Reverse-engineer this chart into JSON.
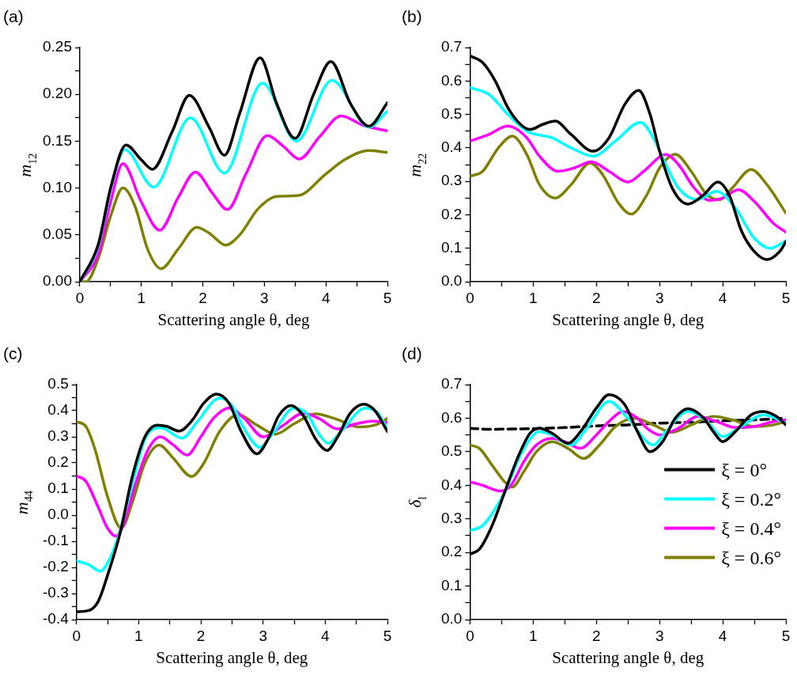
{
  "chart_data": [
    {
      "type": "line",
      "title": "(a)",
      "xlabel": "Scattering angle θ, deg",
      "ylabel": "m$_{12}$",
      "xlim": [
        0,
        5
      ],
      "ylim": [
        0,
        0.25
      ],
      "grid": false,
      "legend": false,
      "xticks": [
        0,
        {
          "value": 0.5,
          "label": null
        },
        1,
        {
          "value": 1.5,
          "label": null
        },
        2,
        {
          "value": 2.5,
          "label": null
        },
        3,
        {
          "value": 3.5,
          "label": null
        },
        4,
        {
          "value": 4.5,
          "label": null
        },
        5
      ],
      "yticks": [
        {
          "value": 0,
          "label": "0.00"
        },
        {
          "value": 0.025,
          "label": null
        },
        {
          "value": 0.05,
          "label": "0.05"
        },
        {
          "value": 0.075,
          "label": null
        },
        {
          "value": 0.1,
          "label": "0.10"
        },
        {
          "value": 0.125,
          "label": null
        },
        {
          "value": 0.15,
          "label": "0.15"
        },
        {
          "value": 0.175,
          "label": null
        },
        {
          "value": 0.2,
          "label": "0.20"
        },
        {
          "value": 0.225,
          "label": null
        },
        {
          "value": 0.25,
          "label": "0.25"
        }
      ],
      "series": [
        {
          "color": "#000000",
          "x": [
            0,
            0.3,
            0.5,
            0.75,
            1.0,
            1.18,
            1.5,
            1.78,
            2.1,
            2.35,
            2.6,
            2.93,
            3.2,
            3.5,
            3.8,
            4.08,
            4.4,
            4.7,
            5
          ],
          "values": [
            0,
            0.04,
            0.1,
            0.146,
            0.13,
            0.12,
            0.16,
            0.199,
            0.165,
            0.135,
            0.18,
            0.239,
            0.19,
            0.153,
            0.2,
            0.235,
            0.19,
            0.166,
            0.191
          ]
        },
        {
          "color": "#00ffff",
          "x": [
            0,
            0.3,
            0.5,
            0.73,
            1.2,
            1.8,
            2.35,
            2.97,
            3.52,
            4.1,
            4.7,
            5
          ],
          "values": [
            0,
            0.038,
            0.098,
            0.141,
            0.101,
            0.175,
            0.116,
            0.212,
            0.15,
            0.215,
            0.165,
            0.182
          ]
        },
        {
          "color": "#ff00ff",
          "x": [
            0,
            0.3,
            0.5,
            0.7,
            1.0,
            1.3,
            1.6,
            1.88,
            2.15,
            2.4,
            2.7,
            3.05,
            3.3,
            3.57,
            3.9,
            4.25,
            4.6,
            5
          ],
          "values": [
            0,
            0.03,
            0.085,
            0.126,
            0.085,
            0.055,
            0.09,
            0.117,
            0.095,
            0.077,
            0.115,
            0.156,
            0.145,
            0.131,
            0.155,
            0.177,
            0.167,
            0.161
          ]
        },
        {
          "color": "#808000",
          "x": [
            0,
            0.1,
            0.3,
            0.5,
            0.7,
            0.9,
            1.1,
            1.32,
            1.6,
            1.9,
            2.1,
            2.37,
            2.6,
            2.9,
            3.2,
            3.55,
            4.0,
            4.3,
            4.7,
            5
          ],
          "values": [
            0,
            0,
            0.025,
            0.07,
            0.1,
            0.08,
            0.035,
            0.014,
            0.035,
            0.058,
            0.052,
            0.039,
            0.05,
            0.078,
            0.091,
            0.092,
            0.115,
            0.13,
            0.14,
            0.138
          ]
        }
      ]
    },
    {
      "type": "line",
      "title": "(b)",
      "xlabel": "Scattering angle θ, deg",
      "ylabel": "m$_{22}$",
      "xlim": [
        0,
        5
      ],
      "ylim": [
        0,
        0.7
      ],
      "grid": false,
      "legend": false,
      "xticks": [
        0,
        {
          "value": 0.5,
          "label": null
        },
        1,
        {
          "value": 1.5,
          "label": null
        },
        2,
        {
          "value": 2.5,
          "label": null
        },
        3,
        {
          "value": 3.5,
          "label": null
        },
        4,
        {
          "value": 4.5,
          "label": null
        },
        5
      ],
      "yticks": [
        {
          "value": 0,
          "label": "0.0"
        },
        {
          "value": 0.05,
          "label": null
        },
        0.1,
        {
          "value": 0.15,
          "label": null
        },
        0.2,
        {
          "value": 0.25,
          "label": null
        },
        0.3,
        {
          "value": 0.35,
          "label": null
        },
        0.4,
        {
          "value": 0.45,
          "label": null
        },
        0.5,
        {
          "value": 0.55,
          "label": null
        },
        0.6,
        {
          "value": 0.65,
          "label": null
        },
        0.7
      ],
      "series": [
        {
          "color": "#000000",
          "x": [
            0,
            0.2,
            0.4,
            0.6,
            0.8,
            0.95,
            1.15,
            1.35,
            1.6,
            1.95,
            2.2,
            2.45,
            2.67,
            2.85,
            3.0,
            3.2,
            3.45,
            3.7,
            3.92,
            4.1,
            4.3,
            4.5,
            4.7,
            4.9,
            5
          ],
          "values": [
            0.675,
            0.655,
            0.6,
            0.52,
            0.47,
            0.455,
            0.47,
            0.48,
            0.44,
            0.39,
            0.43,
            0.53,
            0.572,
            0.5,
            0.39,
            0.28,
            0.232,
            0.26,
            0.298,
            0.26,
            0.15,
            0.09,
            0.066,
            0.09,
            0.12
          ]
        },
        {
          "color": "#00ffff",
          "x": [
            0,
            0.3,
            0.6,
            0.9,
            1.3,
            1.6,
            1.95,
            2.3,
            2.7,
            2.9,
            3.1,
            3.3,
            3.6,
            3.9,
            4.2,
            4.5,
            4.75,
            5
          ],
          "values": [
            0.58,
            0.56,
            0.5,
            0.45,
            0.43,
            0.4,
            0.375,
            0.42,
            0.476,
            0.43,
            0.35,
            0.28,
            0.245,
            0.27,
            0.22,
            0.13,
            0.1,
            0.122
          ]
        },
        {
          "color": "#ff00ff",
          "x": [
            0,
            0.3,
            0.6,
            0.9,
            1.1,
            1.4,
            1.65,
            1.92,
            2.2,
            2.5,
            2.75,
            3.1,
            3.3,
            3.55,
            3.8,
            4.0,
            4.25,
            4.5,
            4.8,
            5
          ],
          "values": [
            0.42,
            0.44,
            0.465,
            0.43,
            0.375,
            0.33,
            0.34,
            0.358,
            0.33,
            0.298,
            0.33,
            0.38,
            0.35,
            0.28,
            0.243,
            0.25,
            0.275,
            0.24,
            0.175,
            0.148
          ]
        },
        {
          "color": "#808000",
          "x": [
            0,
            0.2,
            0.45,
            0.67,
            0.9,
            1.1,
            1.35,
            1.6,
            1.9,
            2.1,
            2.35,
            2.55,
            2.8,
            3.0,
            3.25,
            3.5,
            3.75,
            3.95,
            4.15,
            4.45,
            4.7,
            5
          ],
          "values": [
            0.315,
            0.33,
            0.4,
            0.435,
            0.38,
            0.29,
            0.25,
            0.29,
            0.355,
            0.32,
            0.235,
            0.202,
            0.26,
            0.34,
            0.381,
            0.33,
            0.26,
            0.245,
            0.28,
            0.335,
            0.29,
            0.205
          ]
        }
      ]
    },
    {
      "type": "line",
      "title": "(c)",
      "xlabel": "Scattering angle θ, deg",
      "ylabel": "m$_{44}$",
      "xlim": [
        0,
        5
      ],
      "ylim": [
        -0.4,
        0.5
      ],
      "grid": false,
      "legend": false,
      "xticks": [
        0,
        {
          "value": 0.5,
          "label": null
        },
        1,
        {
          "value": 1.5,
          "label": null
        },
        2,
        {
          "value": 2.5,
          "label": null
        },
        3,
        {
          "value": 3.5,
          "label": null
        },
        4,
        {
          "value": 4.5,
          "label": null
        },
        5
      ],
      "yticks": [
        -0.4,
        {
          "value": -0.35,
          "label": null
        },
        -0.3,
        {
          "value": -0.25,
          "label": null
        },
        -0.2,
        {
          "value": -0.15,
          "label": null
        },
        -0.1,
        {
          "value": -0.05,
          "label": null
        },
        {
          "value": 0,
          "label": "0.0"
        },
        {
          "value": 0.05,
          "label": null
        },
        0.1,
        {
          "value": 0.15,
          "label": null
        },
        0.2,
        {
          "value": 0.25,
          "label": null
        },
        0.3,
        {
          "value": 0.35,
          "label": null
        },
        0.4,
        {
          "value": 0.45,
          "label": null
        },
        0.5
      ],
      "series": [
        {
          "color": "#000000",
          "x": [
            0,
            0.2,
            0.35,
            0.5,
            0.7,
            0.9,
            1.1,
            1.3,
            1.45,
            1.65,
            1.85,
            2.05,
            2.25,
            2.45,
            2.65,
            2.9,
            3.1,
            3.25,
            3.45,
            3.65,
            3.85,
            4.03,
            4.2,
            4.4,
            4.62,
            4.8,
            5
          ],
          "values": [
            -0.37,
            -0.365,
            -0.33,
            -0.23,
            -0.07,
            0.15,
            0.3,
            0.345,
            0.34,
            0.322,
            0.36,
            0.43,
            0.464,
            0.43,
            0.32,
            0.235,
            0.3,
            0.38,
            0.42,
            0.38,
            0.29,
            0.248,
            0.3,
            0.39,
            0.425,
            0.4,
            0.32
          ]
        },
        {
          "color": "#00ffff",
          "x": [
            0,
            0.2,
            0.38,
            0.55,
            0.7,
            0.9,
            1.1,
            1.35,
            1.7,
            1.95,
            2.3,
            2.5,
            2.7,
            2.95,
            3.15,
            3.5,
            3.7,
            3.9,
            4.05,
            4.25,
            4.65,
            4.85,
            5
          ],
          "values": [
            -0.175,
            -0.19,
            -0.215,
            -0.16,
            -0.06,
            0.12,
            0.29,
            0.335,
            0.295,
            0.36,
            0.448,
            0.42,
            0.33,
            0.26,
            0.31,
            0.41,
            0.39,
            0.31,
            0.275,
            0.32,
            0.41,
            0.39,
            0.33
          ]
        },
        {
          "color": "#ff00ff",
          "x": [
            0,
            0.15,
            0.35,
            0.5,
            0.63,
            0.75,
            0.95,
            1.15,
            1.35,
            1.55,
            1.78,
            2.0,
            2.2,
            2.45,
            2.7,
            3.0,
            3.3,
            3.65,
            3.9,
            4.2,
            4.5,
            4.75,
            5
          ],
          "values": [
            0.15,
            0.13,
            0.03,
            -0.05,
            -0.08,
            -0.04,
            0.12,
            0.25,
            0.3,
            0.27,
            0.23,
            0.3,
            0.37,
            0.41,
            0.37,
            0.3,
            0.34,
            0.39,
            0.37,
            0.33,
            0.35,
            0.36,
            0.355
          ]
        },
        {
          "color": "#808000",
          "x": [
            0,
            0.15,
            0.3,
            0.5,
            0.72,
            0.9,
            1.1,
            1.33,
            1.55,
            1.85,
            2.05,
            2.3,
            2.6,
            2.9,
            3.2,
            3.5,
            3.85,
            4.15,
            4.55,
            4.8,
            5
          ],
          "values": [
            0.358,
            0.34,
            0.25,
            0.07,
            -0.05,
            0.05,
            0.2,
            0.268,
            0.22,
            0.148,
            0.2,
            0.32,
            0.385,
            0.345,
            0.31,
            0.35,
            0.388,
            0.37,
            0.338,
            0.345,
            0.37
          ]
        }
      ]
    },
    {
      "type": "line",
      "title": "(d)",
      "xlabel": "Scattering angle θ, deg",
      "ylabel": "δ$_{l}$",
      "xlim": [
        0,
        5
      ],
      "ylim": [
        0,
        0.7
      ],
      "grid": false,
      "legend": "bottom right",
      "xticks": [
        0,
        {
          "value": 0.5,
          "label": null
        },
        1,
        {
          "value": 1.5,
          "label": null
        },
        2,
        {
          "value": 2.5,
          "label": null
        },
        3,
        {
          "value": 3.5,
          "label": null
        },
        4,
        {
          "value": 4.5,
          "label": null
        },
        5
      ],
      "yticks": [
        {
          "value": 0,
          "label": "0.0"
        },
        {
          "value": 0.05,
          "label": null
        },
        0.1,
        {
          "value": 0.15,
          "label": null
        },
        0.2,
        {
          "value": 0.25,
          "label": null
        },
        0.3,
        {
          "value": 0.35,
          "label": null
        },
        0.4,
        {
          "value": 0.45,
          "label": null
        },
        0.5,
        {
          "value": 0.55,
          "label": null
        },
        0.6,
        {
          "value": 0.65,
          "label": null
        },
        0.7
      ],
      "series": [
        {
          "name": "ξ = 0°",
          "color": "#000000",
          "x": [
            0,
            0.15,
            0.35,
            0.55,
            0.75,
            0.95,
            1.1,
            1.3,
            1.55,
            1.75,
            2.0,
            2.2,
            2.45,
            2.65,
            2.85,
            3.05,
            3.25,
            3.45,
            3.7,
            3.85,
            4.0,
            4.2,
            4.45,
            4.65,
            4.85,
            5
          ],
          "values": [
            0.195,
            0.21,
            0.28,
            0.38,
            0.48,
            0.555,
            0.57,
            0.555,
            0.525,
            0.56,
            0.63,
            0.67,
            0.64,
            0.56,
            0.5,
            0.53,
            0.6,
            0.628,
            0.6,
            0.56,
            0.53,
            0.56,
            0.61,
            0.62,
            0.605,
            0.58
          ]
        },
        {
          "name": "ξ = 0.2°",
          "color": "#00ffff",
          "x": [
            0,
            0.2,
            0.4,
            0.6,
            0.8,
            1.1,
            1.3,
            1.6,
            1.85,
            2.2,
            2.5,
            2.9,
            3.1,
            3.45,
            3.75,
            4.0,
            4.25,
            4.65,
            5
          ],
          "values": [
            0.265,
            0.28,
            0.33,
            0.4,
            0.49,
            0.56,
            0.55,
            0.52,
            0.57,
            0.65,
            0.6,
            0.52,
            0.56,
            0.62,
            0.59,
            0.545,
            0.57,
            0.61,
            0.585
          ]
        },
        {
          "name": "ξ = 0.4°",
          "color": "#ff00ff",
          "x": [
            0,
            0.2,
            0.48,
            0.65,
            0.85,
            1.05,
            1.3,
            1.5,
            1.75,
            2.0,
            2.2,
            2.42,
            2.65,
            2.8,
            3.0,
            3.3,
            3.6,
            3.9,
            4.2,
            4.5,
            4.8,
            5
          ],
          "values": [
            0.41,
            0.4,
            0.383,
            0.4,
            0.47,
            0.52,
            0.54,
            0.53,
            0.51,
            0.55,
            0.59,
            0.62,
            0.6,
            0.57,
            0.55,
            0.57,
            0.605,
            0.59,
            0.572,
            0.575,
            0.59,
            0.595
          ]
        },
        {
          "name": "ξ = 0.6°",
          "color": "#808000",
          "x": [
            0,
            0.15,
            0.35,
            0.55,
            0.67,
            0.85,
            1.05,
            1.3,
            1.55,
            1.8,
            2.05,
            2.3,
            2.6,
            2.9,
            3.2,
            3.5,
            3.85,
            4.15,
            4.5,
            4.8,
            5
          ],
          "values": [
            0.52,
            0.51,
            0.46,
            0.41,
            0.395,
            0.44,
            0.5,
            0.53,
            0.51,
            0.48,
            0.52,
            0.575,
            0.6,
            0.58,
            0.558,
            0.58,
            0.605,
            0.595,
            0.575,
            0.58,
            0.59
          ]
        },
        {
          "color": "#000000",
          "line_style": "dashed",
          "x": [
            0,
            0.3,
            0.8,
            1.5,
            2.0,
            2.5,
            3.0,
            3.5,
            4.0,
            4.5,
            5
          ],
          "values": [
            0.57,
            0.567,
            0.568,
            0.572,
            0.577,
            0.58,
            0.585,
            0.588,
            0.592,
            0.595,
            0.6
          ]
        }
      ]
    }
  ]
}
